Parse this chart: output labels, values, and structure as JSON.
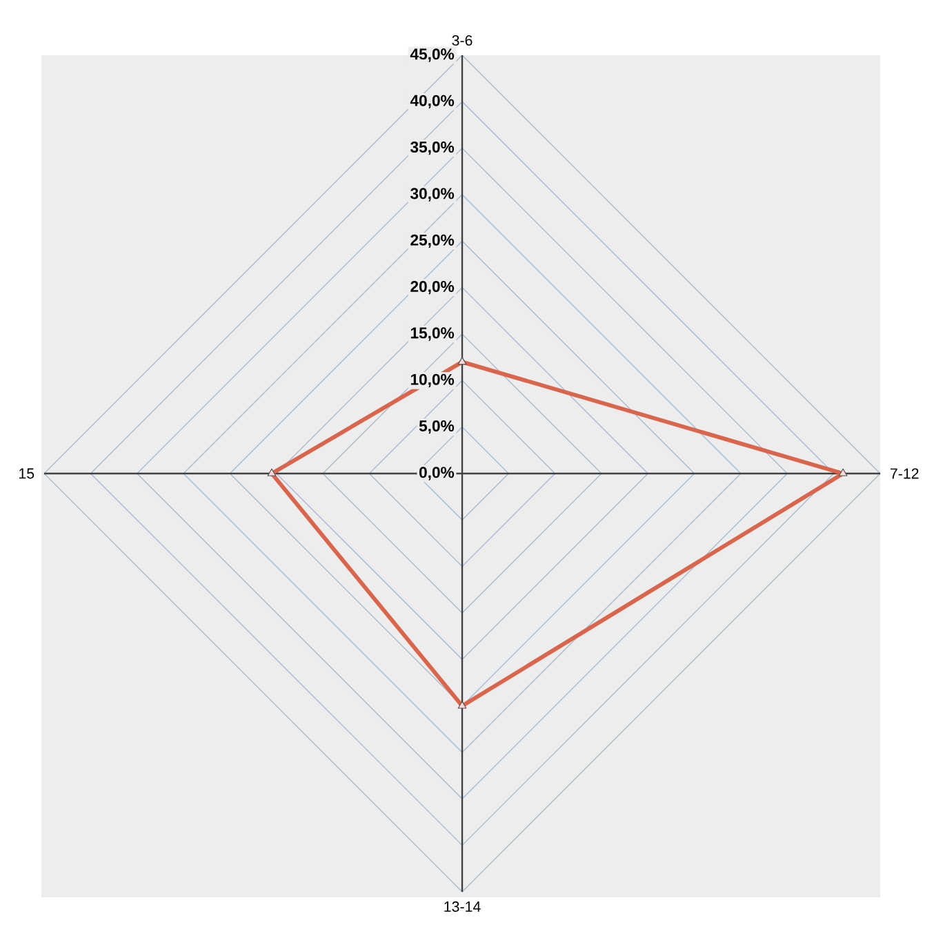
{
  "chart_data": {
    "type": "radar",
    "categories": [
      "3-6",
      "7-12",
      "13-14",
      "15"
    ],
    "series": [
      {
        "color": "#d9664c",
        "values": [
          12,
          41,
          25,
          20.5
        ]
      }
    ],
    "ylim": [
      0,
      45
    ],
    "yticks": [
      {
        "value": 0,
        "label": "0,0%"
      },
      {
        "value": 5,
        "label": "5,0%"
      },
      {
        "value": 10,
        "label": "10,0%"
      },
      {
        "value": 15,
        "label": "15,0%"
      },
      {
        "value": 20,
        "label": "20,0%"
      },
      {
        "value": 25,
        "label": "25,0%"
      },
      {
        "value": 30,
        "label": "30,0%"
      },
      {
        "value": 35,
        "label": "35,0%"
      },
      {
        "value": 40,
        "label": "40,0%"
      },
      {
        "value": 45,
        "label": "45,0%"
      }
    ],
    "grid": true,
    "marker": "triangle",
    "line_style": "solid"
  }
}
